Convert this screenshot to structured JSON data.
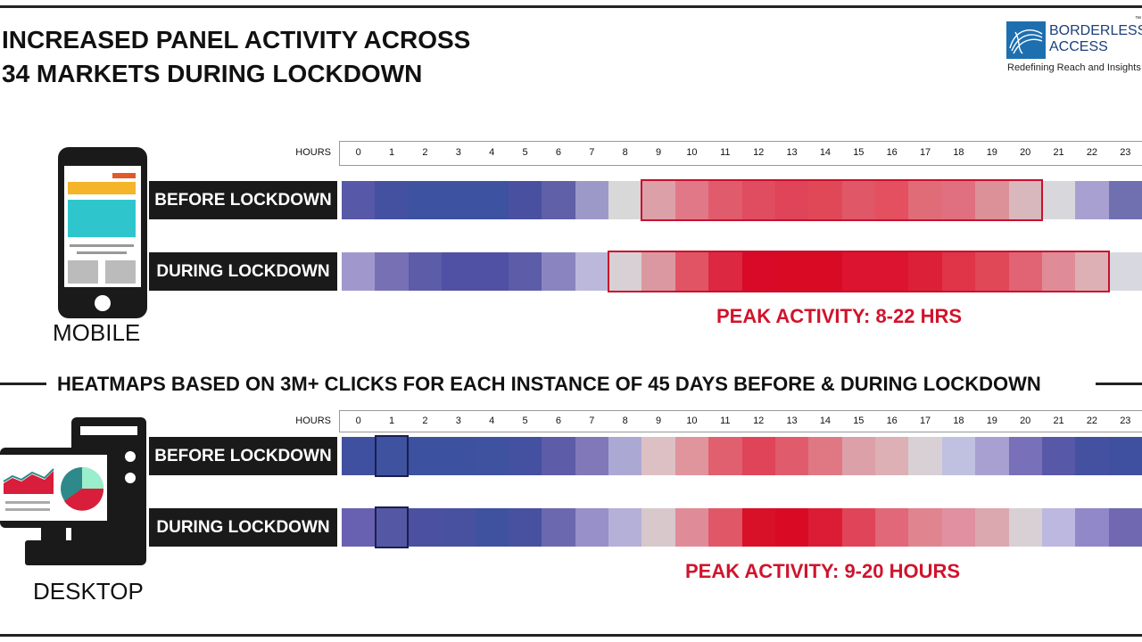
{
  "title_line1": "INCREASED PANEL ACTIVITY ACROSS",
  "title_line2": "34 MARKETS DURING LOCKDOWN",
  "logo": {
    "name_line1": "BORDERLESS",
    "name_line2": "ACCESS",
    "tagline": "Redefining Reach and Insights",
    "tm": "™"
  },
  "divider_text": "HEATMAPS BASED ON 3M+ CLICKS FOR EACH INSTANCE OF 45 DAYS BEFORE & DURING LOCKDOWN",
  "chart_data": [
    {
      "type": "heatmap",
      "device": "MOBILE",
      "x_label": "HOURS",
      "hours": [
        "0",
        "1",
        "2",
        "3",
        "4",
        "5",
        "6",
        "7",
        "8",
        "9",
        "10",
        "11",
        "12",
        "13",
        "14",
        "15",
        "16",
        "17",
        "18",
        "19",
        "20",
        "21",
        "22",
        "23"
      ],
      "rows": [
        {
          "label": "BEFORE LOCKDOWN",
          "highlight_hours": [
            9,
            20
          ],
          "colors": [
            "#5858a8",
            "#4450a0",
            "#3d52a0",
            "#3d52a0",
            "#3d52a0",
            "#4a50a0",
            "#6060a8",
            "#9c98c8",
            "#d8d8d8",
            "#dca0a8",
            "#e07888",
            "#e05c6c",
            "#e04c60",
            "#e04458",
            "#e04858",
            "#e05868",
            "#e45060",
            "#e06c78",
            "#e07080",
            "#dc9098",
            "#d8b8bc",
            "#d8d8dc",
            "#a8a0d0",
            "#7070b0"
          ]
        },
        {
          "label": "DURING LOCKDOWN",
          "highlight_hours": [
            8,
            22
          ],
          "colors": [
            "#a098cc",
            "#7870b4",
            "#5c5ca8",
            "#5050a4",
            "#5050a4",
            "#5c5ca8",
            "#8a84c0",
            "#bcb8dc",
            "#d8d0d4",
            "#dc98a0",
            "#e05464",
            "#dc2840",
            "#d80a28",
            "#d80a24",
            "#d80a24",
            "#dc1430",
            "#dc1430",
            "#dc2038",
            "#e03448",
            "#e04858",
            "#e06474",
            "#e08c98",
            "#dcb0b4",
            "#d8d8e0"
          ]
        }
      ],
      "annotation": "PEAK ACTIVITY: 8-22 HRS"
    },
    {
      "type": "heatmap",
      "device": "DESKTOP",
      "x_label": "HOURS",
      "hours": [
        "0",
        "1",
        "2",
        "3",
        "4",
        "5",
        "6",
        "7",
        "8",
        "9",
        "10",
        "11",
        "12",
        "13",
        "14",
        "15",
        "16",
        "17",
        "18",
        "19",
        "20",
        "21",
        "22",
        "23"
      ],
      "outlined_hour": 1,
      "rows": [
        {
          "label": "BEFORE LOCKDOWN",
          "colors": [
            "#4050a0",
            "#3e52a0",
            "#3c52a0",
            "#3c52a0",
            "#3e52a0",
            "#4450a0",
            "#5c5ca8",
            "#8078b8",
            "#aca8d4",
            "#dcc0c4",
            "#e0949c",
            "#e06070",
            "#e04458",
            "#e05c6c",
            "#e07884",
            "#dca0a8",
            "#dcb0b4",
            "#d8d0d4",
            "#c0c0e0",
            "#a8a0d0",
            "#7870b8",
            "#5858a8",
            "#4450a0",
            "#4050a0"
          ]
        },
        {
          "label": "DURING LOCKDOWN",
          "colors": [
            "#6860b0",
            "#5458a4",
            "#4c50a0",
            "#4850a0",
            "#3e52a0",
            "#4850a0",
            "#6c68b0",
            "#9890c8",
            "#b4b0d8",
            "#d8c8cc",
            "#e08c98",
            "#e05868",
            "#d81028",
            "#d80a24",
            "#dc1c34",
            "#e04458",
            "#e06878",
            "#e08490",
            "#e090a0",
            "#dca8b0",
            "#d8d0d4",
            "#bcb8e0",
            "#9088c8",
            "#7068b0"
          ]
        }
      ],
      "annotation": "PEAK ACTIVITY: 9-20 HOURS"
    }
  ]
}
